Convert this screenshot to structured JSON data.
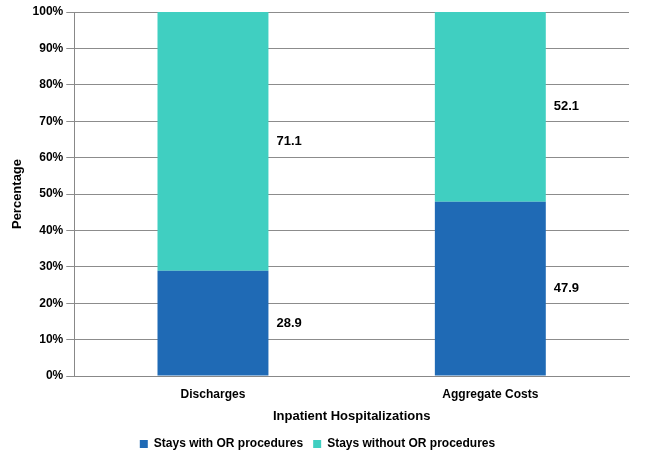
{
  "chart_data": {
    "type": "bar",
    "stacked": true,
    "x_label": "Inpatient Hospitalizations",
    "y_label": "Percentage",
    "categories": [
      "Discharges",
      "Aggregate Costs"
    ],
    "series": [
      {
        "name": "Stays with OR procedures",
        "color": "#1f6ab5",
        "values": [
          28.9,
          47.9
        ]
      },
      {
        "name": "Stays without OR procedures",
        "color": "#40cfc1",
        "values": [
          71.1,
          52.1
        ]
      }
    ],
    "ylim": [
      0,
      100
    ],
    "yticks": [
      {
        "value": 0,
        "label": "0%"
      },
      {
        "value": 10,
        "label": "10%"
      },
      {
        "value": 20,
        "label": "20%"
      },
      {
        "value": 30,
        "label": "30%"
      },
      {
        "value": 40,
        "label": "40%"
      },
      {
        "value": 50,
        "label": "50%"
      },
      {
        "value": 60,
        "label": "60%"
      },
      {
        "value": 70,
        "label": "70%"
      },
      {
        "value": 80,
        "label": "80%"
      },
      {
        "value": 90,
        "label": "90%"
      },
      {
        "value": 100,
        "label": "100%"
      }
    ],
    "grid": true,
    "legend": "bottom",
    "data_labels": true
  }
}
